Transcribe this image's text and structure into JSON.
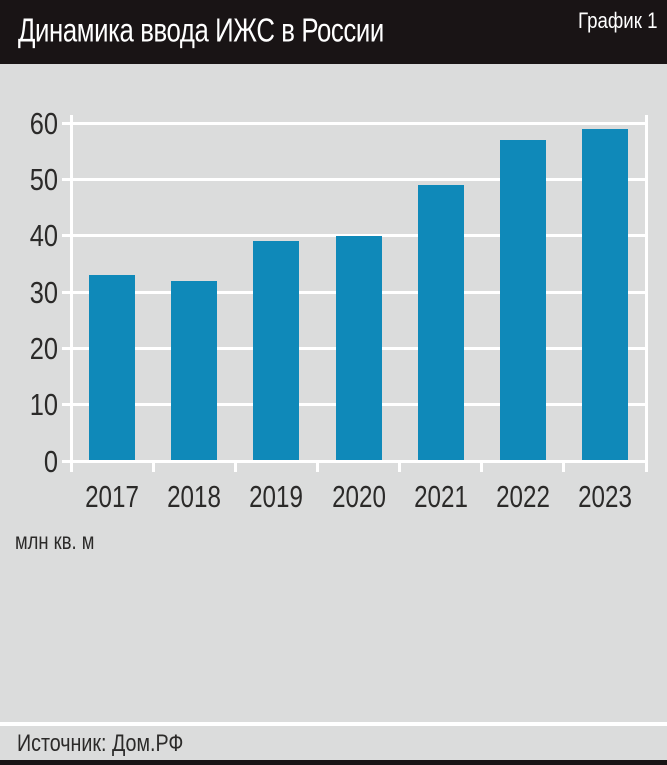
{
  "header": {
    "title": "Динамика ввода ИЖС в России",
    "badge": "График 1"
  },
  "chart_data": {
    "type": "bar",
    "title": "Динамика ввода ИЖС в России",
    "categories": [
      "2017",
      "2018",
      "2019",
      "2020",
      "2021",
      "2022",
      "2023"
    ],
    "values": [
      33,
      32,
      39,
      40,
      49,
      57,
      59
    ],
    "unit_label": "млн кв. м",
    "xlabel": "",
    "ylabel": "млн кв. м",
    "ylim": [
      0,
      60
    ],
    "ytick_step": 10,
    "grid": true,
    "legend": "none",
    "bar_color": "#0f89b9",
    "plot_bg": "#dbdcdc",
    "grid_color": "#ffffff",
    "label_color": "#2b2a29"
  },
  "footer": {
    "source_label": "Источник: Дом.РФ"
  },
  "colors": {
    "header_bg": "#191415",
    "page_bg": "#dbdcdc",
    "accent_blue": "#0f89b9",
    "text_dark": "#2b2a29",
    "grid_white": "#ffffff"
  }
}
